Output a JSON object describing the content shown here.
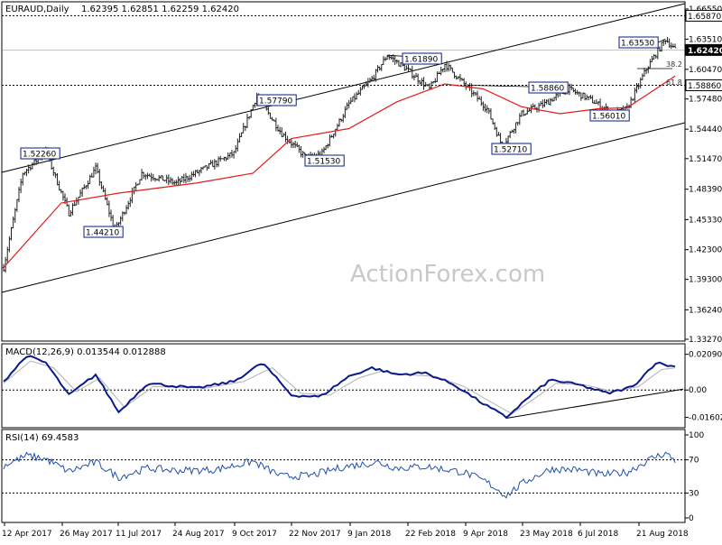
{
  "header": {
    "title": "EURAUD,Daily",
    "ohlc": "1.62395 1.62851 1.62259 1.62420"
  },
  "watermark": "ActionForex.com",
  "colors": {
    "price": "#222222",
    "ma": "#e51a1a",
    "macd": "#0a1a8c",
    "signal": "#b0b0b0",
    "rsi": "#1f4fb0",
    "annotation_line": "#000000",
    "current_price_box": "#000000"
  },
  "chart_data": [
    {
      "type": "ohlc",
      "title": "EURAUD,Daily",
      "ylim": [
        1.3327,
        1.67
      ],
      "y_ticks": [
        "1.66550",
        "1.63510",
        "1.60470",
        "1.57480",
        "1.54440",
        "1.51470",
        "1.48390",
        "1.45330",
        "1.42300",
        "1.39300",
        "1.36240",
        "1.33270"
      ],
      "x_ticks": [
        "12 Apr 2017",
        "26 May 2017",
        "11 Jul 2017",
        "24 Aug 2017",
        "9 Oct 2017",
        "22 Nov 2017",
        "9 Jan 2018",
        "22 Feb 2018",
        "9 Apr 2018",
        "23 May 2018",
        "6 Jul 2018",
        "21 Aug 2018"
      ],
      "price_path": [
        [
          0,
          1.405
        ],
        [
          10,
          1.5
        ],
        [
          22,
          1.522
        ],
        [
          34,
          1.46
        ],
        [
          48,
          1.505
        ],
        [
          58,
          1.442
        ],
        [
          72,
          1.5
        ],
        [
          90,
          1.49
        ],
        [
          105,
          1.505
        ],
        [
          120,
          1.52
        ],
        [
          132,
          1.578
        ],
        [
          145,
          1.54
        ],
        [
          158,
          1.515
        ],
        [
          166,
          1.52
        ],
        [
          180,
          1.57
        ],
        [
          192,
          1.595
        ],
        [
          200,
          1.619
        ],
        [
          210,
          1.605
        ],
        [
          222,
          1.585
        ],
        [
          230,
          1.61
        ],
        [
          242,
          1.586
        ],
        [
          252,
          1.565
        ],
        [
          260,
          1.527
        ],
        [
          270,
          1.56
        ],
        [
          282,
          1.57
        ],
        [
          294,
          1.585
        ],
        [
          305,
          1.575
        ],
        [
          318,
          1.56
        ],
        [
          325,
          1.565
        ],
        [
          335,
          1.605
        ],
        [
          345,
          1.6353
        ],
        [
          350,
          1.6242
        ]
      ],
      "moving_average": [
        [
          0,
          1.405
        ],
        [
          30,
          1.47
        ],
        [
          60,
          1.48
        ],
        [
          100,
          1.49
        ],
        [
          130,
          1.5
        ],
        [
          150,
          1.535
        ],
        [
          180,
          1.545
        ],
        [
          205,
          1.572
        ],
        [
          230,
          1.59
        ],
        [
          250,
          1.585
        ],
        [
          270,
          1.567
        ],
        [
          290,
          1.56
        ],
        [
          310,
          1.565
        ],
        [
          325,
          1.566
        ],
        [
          340,
          1.585
        ],
        [
          350,
          1.598
        ]
      ],
      "current_price": "1.62420",
      "levels": [
        {
          "label": "1.65870",
          "kind": "horizontal"
        },
        {
          "label": "1.58860",
          "kind": "horizontal"
        }
      ],
      "annotations": [
        "1.52260",
        "1.44210",
        "1.57790",
        "1.51530",
        "1.61890",
        "1.52710",
        "1.58860",
        "1.56010",
        "1.63530",
        "38.2",
        "61.8"
      ]
    },
    {
      "type": "line",
      "title": "MACD(12,26,9) 0.013544 0.012888",
      "y_ticks": [
        "0.020904",
        "0.00",
        "-0.016023"
      ],
      "macd": [
        [
          0,
          0.005
        ],
        [
          12,
          0.02
        ],
        [
          22,
          0.016
        ],
        [
          34,
          -0.003
        ],
        [
          48,
          0.009
        ],
        [
          60,
          -0.013
        ],
        [
          75,
          0.004
        ],
        [
          100,
          0.001
        ],
        [
          120,
          0.005
        ],
        [
          135,
          0.016
        ],
        [
          150,
          -0.003
        ],
        [
          165,
          -0.004
        ],
        [
          180,
          0.008
        ],
        [
          192,
          0.013
        ],
        [
          205,
          0.009
        ],
        [
          220,
          0.01
        ],
        [
          235,
          0.003
        ],
        [
          250,
          -0.008
        ],
        [
          262,
          -0.016
        ],
        [
          275,
          -0.003
        ],
        [
          285,
          0.006
        ],
        [
          300,
          0.003
        ],
        [
          315,
          -0.002
        ],
        [
          328,
          0.002
        ],
        [
          340,
          0.016
        ],
        [
          350,
          0.013544
        ]
      ],
      "signal": [
        [
          0,
          0.004
        ],
        [
          14,
          0.017
        ],
        [
          26,
          0.013
        ],
        [
          38,
          -0.001
        ],
        [
          50,
          0.007
        ],
        [
          63,
          -0.01
        ],
        [
          78,
          0.002
        ],
        [
          105,
          0.001
        ],
        [
          125,
          0.005
        ],
        [
          140,
          0.013
        ],
        [
          155,
          -0.002
        ],
        [
          170,
          -0.003
        ],
        [
          185,
          0.007
        ],
        [
          197,
          0.011
        ],
        [
          210,
          0.009
        ],
        [
          225,
          0.008
        ],
        [
          240,
          0.002
        ],
        [
          254,
          -0.007
        ],
        [
          265,
          -0.014
        ],
        [
          278,
          -0.004
        ],
        [
          288,
          0.004
        ],
        [
          303,
          0.003
        ],
        [
          318,
          -0.001
        ],
        [
          331,
          0.002
        ],
        [
          343,
          0.012
        ],
        [
          350,
          0.012888
        ]
      ]
    },
    {
      "type": "line",
      "title": "RSI(14) 69.4583",
      "y_ticks": [
        "100",
        "70",
        "30",
        "0"
      ],
      "rsi": [
        [
          0,
          63
        ],
        [
          12,
          75
        ],
        [
          22,
          71
        ],
        [
          34,
          56
        ],
        [
          48,
          67
        ],
        [
          60,
          49
        ],
        [
          75,
          60
        ],
        [
          90,
          57
        ],
        [
          110,
          58
        ],
        [
          130,
          68
        ],
        [
          145,
          50
        ],
        [
          160,
          51
        ],
        [
          178,
          62
        ],
        [
          195,
          67
        ],
        [
          205,
          60
        ],
        [
          220,
          62
        ],
        [
          240,
          55
        ],
        [
          252,
          43
        ],
        [
          262,
          27
        ],
        [
          272,
          44
        ],
        [
          285,
          59
        ],
        [
          300,
          58
        ],
        [
          312,
          52
        ],
        [
          325,
          55
        ],
        [
          338,
          72
        ],
        [
          345,
          78
        ],
        [
          350,
          69.4583
        ]
      ]
    }
  ]
}
